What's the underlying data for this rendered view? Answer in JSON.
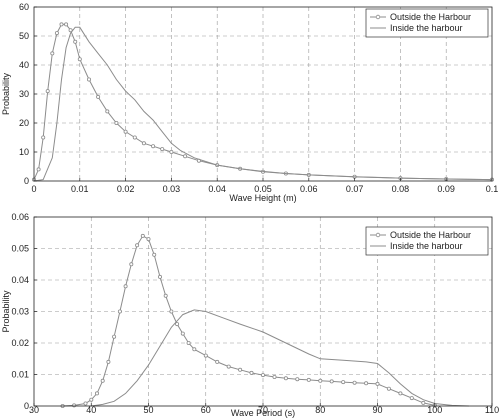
{
  "chart_data": [
    {
      "type": "line",
      "xlabel": "Wave Height (m)",
      "ylabel": "Probability",
      "xlim": [
        0,
        0.1
      ],
      "ylim": [
        0,
        60
      ],
      "xticks": [
        0,
        0.01,
        0.02,
        0.03,
        0.04,
        0.05,
        0.06,
        0.07,
        0.08,
        0.09,
        0.1
      ],
      "xtick_labels": [
        "0",
        "0.01",
        "0.02",
        "0.03",
        "0.04",
        "0.05",
        "0.06",
        "0.07",
        "0.08",
        "0.09",
        "0.1"
      ],
      "yticks": [
        0,
        10,
        20,
        30,
        40,
        50,
        60
      ],
      "ytick_labels": [
        "0",
        "10",
        "20",
        "30",
        "40",
        "50",
        "60"
      ],
      "grid": true,
      "legend_position": "top-right",
      "series": [
        {
          "name": "Outside the Harbour",
          "marker": "circle",
          "color": "#8c8c8c",
          "x": [
            0.0,
            0.001,
            0.002,
            0.003,
            0.004,
            0.005,
            0.006,
            0.007,
            0.008,
            0.009,
            0.01,
            0.012,
            0.014,
            0.016,
            0.018,
            0.02,
            0.022,
            0.024,
            0.026,
            0.028,
            0.03,
            0.033,
            0.036,
            0.04,
            0.045,
            0.05,
            0.055,
            0.06,
            0.07,
            0.08,
            0.09,
            0.1
          ],
          "y": [
            0.5,
            4,
            15,
            31,
            44,
            51,
            54,
            54,
            52,
            48,
            42,
            35,
            29,
            24,
            20,
            17,
            15,
            13,
            12,
            11,
            10,
            8.5,
            7,
            5.5,
            4.2,
            3.2,
            2.6,
            2.1,
            1.5,
            1.0,
            0.7,
            0.5
          ]
        },
        {
          "name": "Inside the harbour",
          "marker": "none",
          "color": "#8c8c8c",
          "x": [
            0.0,
            0.002,
            0.004,
            0.005,
            0.006,
            0.007,
            0.008,
            0.009,
            0.01,
            0.012,
            0.014,
            0.016,
            0.018,
            0.02,
            0.022,
            0.024,
            0.026,
            0.028,
            0.03,
            0.032,
            0.035,
            0.04,
            0.045,
            0.05,
            0.055,
            0.06,
            0.07,
            0.08,
            0.09,
            0.1
          ],
          "y": [
            0,
            0.5,
            8,
            20,
            35,
            46,
            51,
            53,
            53,
            48,
            44,
            40,
            35,
            31,
            28,
            24,
            21,
            17,
            13,
            10.5,
            8,
            5.5,
            4.2,
            3.3,
            2.6,
            2.1,
            1.4,
            1.0,
            0.7,
            0.5
          ]
        }
      ]
    },
    {
      "type": "line",
      "xlabel": "Wave Period (s)",
      "ylabel": "Probability",
      "xlim": [
        30,
        110
      ],
      "ylim": [
        0,
        0.06
      ],
      "xticks": [
        30,
        40,
        50,
        60,
        70,
        80,
        90,
        100,
        110
      ],
      "xtick_labels": [
        "30",
        "40",
        "50",
        "60",
        "70",
        "80",
        "90",
        "100",
        "110"
      ],
      "yticks": [
        0,
        0.01,
        0.02,
        0.03,
        0.04,
        0.05,
        0.06
      ],
      "ytick_labels": [
        "0",
        "0.01",
        "0.02",
        "0.03",
        "0.04",
        "0.05",
        "0.06"
      ],
      "grid": true,
      "legend_position": "top-right",
      "series": [
        {
          "name": "Outside the Harbour",
          "marker": "circle",
          "color": "#8c8c8c",
          "x": [
            35,
            37,
            39,
            40,
            41,
            42,
            43,
            44,
            45,
            46,
            47,
            48,
            49,
            50,
            51,
            52,
            53,
            54,
            55,
            56,
            57,
            58,
            60,
            62,
            64,
            66,
            68,
            70,
            72,
            74,
            76,
            78,
            80,
            82,
            84,
            86,
            88,
            90,
            92,
            94,
            96,
            98,
            100
          ],
          "y": [
            0,
            0.0002,
            0.0008,
            0.002,
            0.004,
            0.008,
            0.014,
            0.022,
            0.03,
            0.038,
            0.045,
            0.051,
            0.054,
            0.053,
            0.048,
            0.041,
            0.035,
            0.03,
            0.026,
            0.023,
            0.02,
            0.018,
            0.016,
            0.014,
            0.0125,
            0.0115,
            0.0105,
            0.0098,
            0.0092,
            0.0088,
            0.0085,
            0.0083,
            0.008,
            0.0078,
            0.0076,
            0.0074,
            0.0072,
            0.007,
            0.0055,
            0.004,
            0.0025,
            0.001,
            0.0002
          ]
        },
        {
          "name": "Inside the harbour",
          "marker": "none",
          "color": "#8c8c8c",
          "x": [
            40,
            42,
            44,
            46,
            48,
            50,
            52,
            54,
            56,
            58,
            60,
            63,
            66,
            70,
            74,
            78,
            80,
            84,
            88,
            90,
            92,
            94,
            96,
            98,
            100,
            103,
            106
          ],
          "y": [
            0,
            0.0005,
            0.0015,
            0.004,
            0.008,
            0.013,
            0.019,
            0.025,
            0.029,
            0.0305,
            0.03,
            0.028,
            0.026,
            0.0235,
            0.02,
            0.0165,
            0.015,
            0.0145,
            0.014,
            0.0135,
            0.0105,
            0.007,
            0.004,
            0.002,
            0.0008,
            0.0002,
            0
          ]
        }
      ]
    }
  ]
}
